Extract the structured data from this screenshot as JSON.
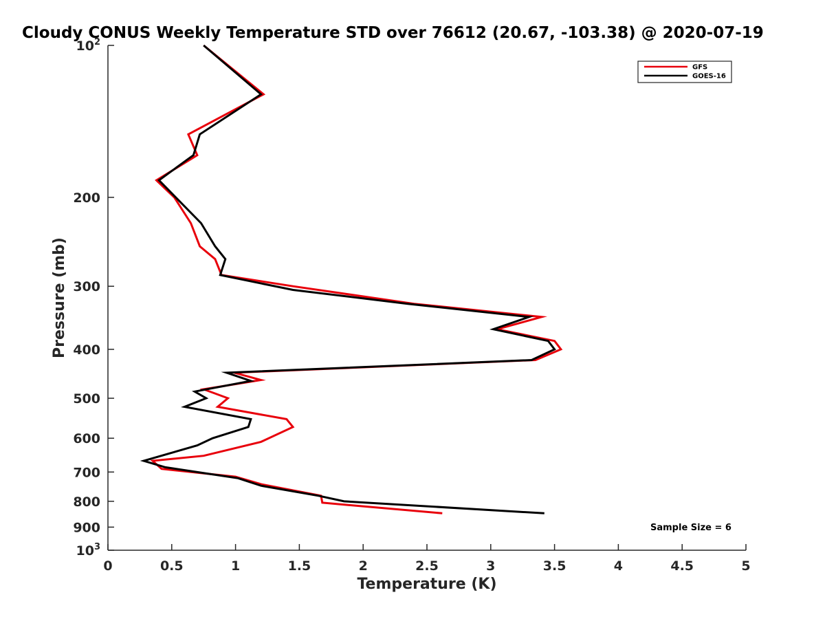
{
  "chart_data": {
    "type": "line",
    "title": "Cloudy CONUS Weekly Temperature STD over 76612 (20.67, -103.38) @ 2020-07-19",
    "xlabel": "Temperature (K)",
    "ylabel": "Pressure (mb)",
    "xlim": [
      0,
      5
    ],
    "ylim": [
      100,
      1000
    ],
    "yscale": "log",
    "y_reversed": true,
    "x_ticks": [
      {
        "value": 0,
        "label": "0"
      },
      {
        "value": 0.5,
        "label": "0.5"
      },
      {
        "value": 1,
        "label": "1"
      },
      {
        "value": 1.5,
        "label": "1.5"
      },
      {
        "value": 2,
        "label": "2"
      },
      {
        "value": 2.5,
        "label": "2.5"
      },
      {
        "value": 3,
        "label": "3"
      },
      {
        "value": 3.5,
        "label": "3.5"
      },
      {
        "value": 4,
        "label": "4"
      },
      {
        "value": 4.5,
        "label": "4.5"
      },
      {
        "value": 5,
        "label": "5"
      }
    ],
    "y_ticks": [
      {
        "value": 100,
        "base": "10",
        "exp": "2"
      },
      {
        "value": 200,
        "label": "200"
      },
      {
        "value": 300,
        "label": "300"
      },
      {
        "value": 400,
        "label": "400"
      },
      {
        "value": 500,
        "label": "500"
      },
      {
        "value": 600,
        "label": "600"
      },
      {
        "value": 700,
        "label": "700"
      },
      {
        "value": 800,
        "label": "800"
      },
      {
        "value": 900,
        "label": "900"
      },
      {
        "value": 1000,
        "base": "10",
        "exp": "3"
      }
    ],
    "legend": {
      "position": "top-right"
    },
    "annotation": "Sample Size = 6",
    "series": [
      {
        "name": "GFS",
        "color": "#e8000b",
        "points": [
          {
            "x": 0.75,
            "y": 100
          },
          {
            "x": 1.22,
            "y": 125
          },
          {
            "x": 0.63,
            "y": 150
          },
          {
            "x": 0.7,
            "y": 165
          },
          {
            "x": 0.38,
            "y": 185
          },
          {
            "x": 0.52,
            "y": 200
          },
          {
            "x": 0.65,
            "y": 225
          },
          {
            "x": 0.72,
            "y": 250
          },
          {
            "x": 0.84,
            "y": 265
          },
          {
            "x": 0.89,
            "y": 285
          },
          {
            "x": 1.45,
            "y": 300
          },
          {
            "x": 2.4,
            "y": 325
          },
          {
            "x": 3.4,
            "y": 345
          },
          {
            "x": 3.05,
            "y": 365
          },
          {
            "x": 3.5,
            "y": 385
          },
          {
            "x": 3.55,
            "y": 400
          },
          {
            "x": 3.35,
            "y": 420
          },
          {
            "x": 0.99,
            "y": 445
          },
          {
            "x": 1.2,
            "y": 460
          },
          {
            "x": 0.75,
            "y": 480
          },
          {
            "x": 0.94,
            "y": 500
          },
          {
            "x": 0.86,
            "y": 520
          },
          {
            "x": 1.4,
            "y": 550
          },
          {
            "x": 1.45,
            "y": 570
          },
          {
            "x": 1.2,
            "y": 610
          },
          {
            "x": 0.75,
            "y": 650
          },
          {
            "x": 0.35,
            "y": 665
          },
          {
            "x": 0.42,
            "y": 690
          },
          {
            "x": 1.0,
            "y": 715
          },
          {
            "x": 1.2,
            "y": 740
          },
          {
            "x": 1.67,
            "y": 780
          },
          {
            "x": 1.68,
            "y": 805
          },
          {
            "x": 2.62,
            "y": 845
          }
        ]
      },
      {
        "name": "GOES-16",
        "color": "#000000",
        "points": [
          {
            "x": 0.75,
            "y": 100
          },
          {
            "x": 1.2,
            "y": 125
          },
          {
            "x": 0.72,
            "y": 150
          },
          {
            "x": 0.67,
            "y": 165
          },
          {
            "x": 0.4,
            "y": 185
          },
          {
            "x": 0.73,
            "y": 225
          },
          {
            "x": 0.84,
            "y": 250
          },
          {
            "x": 0.92,
            "y": 265
          },
          {
            "x": 0.88,
            "y": 285
          },
          {
            "x": 1.45,
            "y": 305
          },
          {
            "x": 2.35,
            "y": 325
          },
          {
            "x": 3.3,
            "y": 345
          },
          {
            "x": 3.02,
            "y": 365
          },
          {
            "x": 3.45,
            "y": 385
          },
          {
            "x": 3.5,
            "y": 400
          },
          {
            "x": 3.32,
            "y": 420
          },
          {
            "x": 0.93,
            "y": 445
          },
          {
            "x": 1.12,
            "y": 462
          },
          {
            "x": 0.68,
            "y": 485
          },
          {
            "x": 0.77,
            "y": 500
          },
          {
            "x": 0.6,
            "y": 520
          },
          {
            "x": 1.12,
            "y": 550
          },
          {
            "x": 1.1,
            "y": 570
          },
          {
            "x": 0.82,
            "y": 600
          },
          {
            "x": 0.7,
            "y": 620
          },
          {
            "x": 0.28,
            "y": 665
          },
          {
            "x": 0.45,
            "y": 685
          },
          {
            "x": 1.02,
            "y": 720
          },
          {
            "x": 1.2,
            "y": 745
          },
          {
            "x": 1.65,
            "y": 780
          },
          {
            "x": 1.85,
            "y": 800
          },
          {
            "x": 3.42,
            "y": 845
          }
        ]
      }
    ]
  }
}
